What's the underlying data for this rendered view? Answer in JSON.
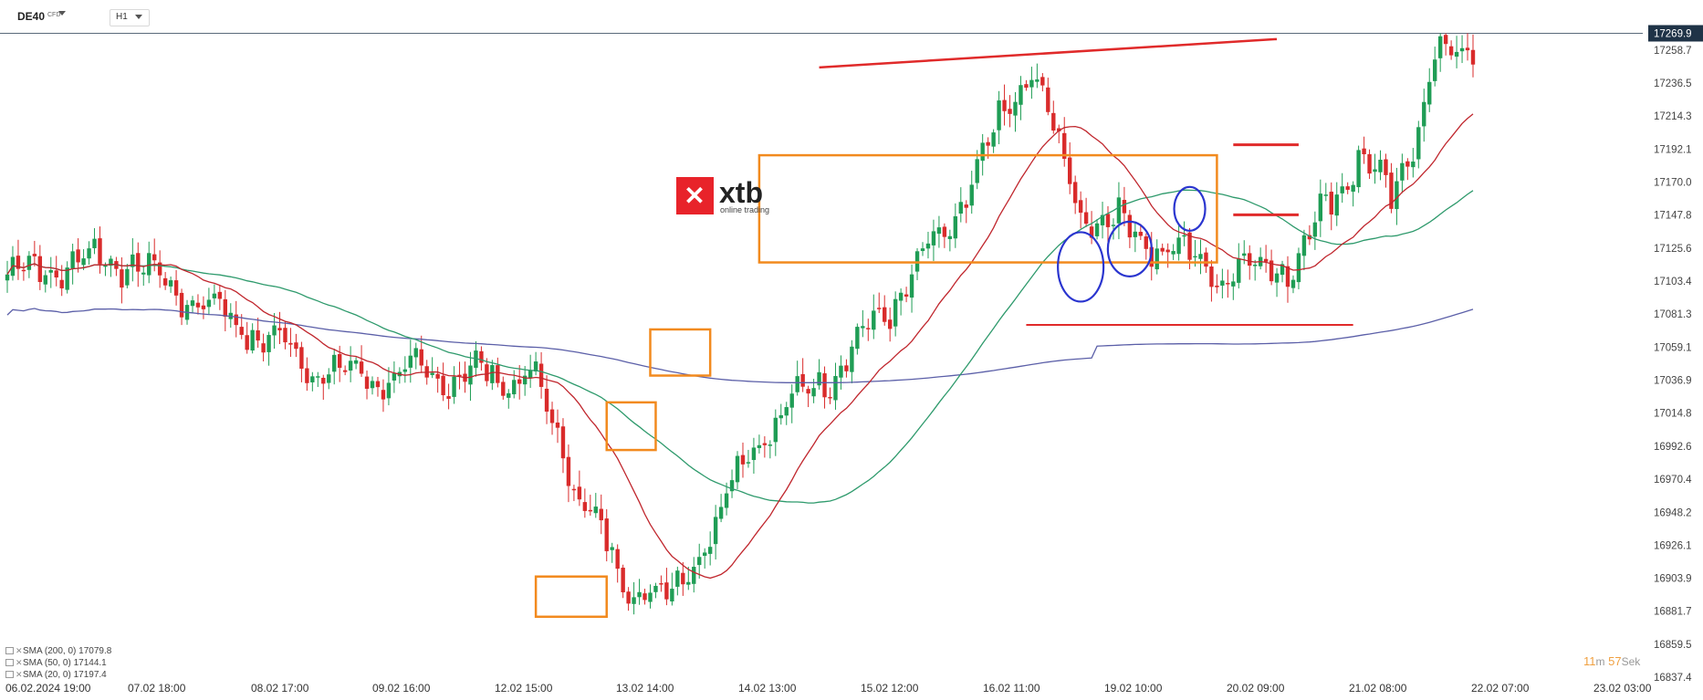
{
  "toolbar": {
    "symbol": "DE40",
    "symbol_type": "CFD",
    "timeframe": "H1"
  },
  "logo": {
    "name": "xtb",
    "tagline": "online trading",
    "color": "#e8232a"
  },
  "price_label": "17269.9",
  "timer": {
    "minutes": "11",
    "minutes_unit": "m",
    "seconds": "57",
    "seconds_unit": "Sek"
  },
  "legend": [
    {
      "label": "SMA (200, 0) 17079.8",
      "color": "#5b5fa8"
    },
    {
      "label": "SMA (50, 0) 17144.1",
      "color": "#2e9a6c"
    },
    {
      "label": "SMA (20, 0) 17197.4",
      "color": "#c0262d"
    }
  ],
  "colors": {
    "up": "#1f9d55",
    "down": "#d92b2b",
    "sma200": "#5b5fa8",
    "sma50": "#2e9a6c",
    "sma20": "#c0262d",
    "box": "#f28a1e",
    "resistance": "#e02a2a",
    "circle": "#2a35cf"
  },
  "chart_data": {
    "type": "candlestick",
    "x_tick_labels": [
      "06.02.2024 19:00",
      "07.02 18:00",
      "08.02 17:00",
      "09.02 16:00",
      "12.02 15:00",
      "13.02 14:00",
      "14.02 13:00",
      "15.02 12:00",
      "16.02 11:00",
      "19.02 10:00",
      "20.02 09:00",
      "21.02 08:00",
      "22.02 07:00",
      "23.02 03:00"
    ],
    "y_tick_labels": [
      "17258.7",
      "17236.5",
      "17214.3",
      "17192.1",
      "17170.0",
      "17147.8",
      "17125.6",
      "17103.4",
      "17081.3",
      "17059.1",
      "17036.9",
      "17014.8",
      "16992.6",
      "16970.4",
      "16948.2",
      "16926.1",
      "16903.9",
      "16881.7",
      "16859.5",
      "16837.4"
    ],
    "ylim": [
      16837.4,
      17269.9
    ],
    "last_price": 17269.9,
    "key_close_points": [
      {
        "bar": 0,
        "close": 17108
      },
      {
        "bar": 20,
        "close": 17120
      },
      {
        "bar": 60,
        "close": 17040
      },
      {
        "bar": 96,
        "close": 17040
      },
      {
        "bar": 112,
        "close": 16905
      },
      {
        "bar": 122,
        "close": 16890
      },
      {
        "bar": 138,
        "close": 17000
      },
      {
        "bar": 156,
        "close": 17060
      },
      {
        "bar": 172,
        "close": 17135
      },
      {
        "bar": 188,
        "close": 17250
      },
      {
        "bar": 196,
        "close": 17155
      },
      {
        "bar": 210,
        "close": 17130
      },
      {
        "bar": 222,
        "close": 17110
      },
      {
        "bar": 236,
        "close": 17115
      },
      {
        "bar": 248,
        "close": 17190
      },
      {
        "bar": 254,
        "close": 17155
      },
      {
        "bar": 262,
        "close": 17250
      },
      {
        "bar": 269,
        "close": 17262
      }
    ],
    "series": [
      {
        "name": "SMA (200, 0)",
        "last": 17079.8
      },
      {
        "name": "SMA (50, 0)",
        "last": 17144.1
      },
      {
        "name": "SMA (20, 0)",
        "last": 17197.4
      }
    ]
  }
}
